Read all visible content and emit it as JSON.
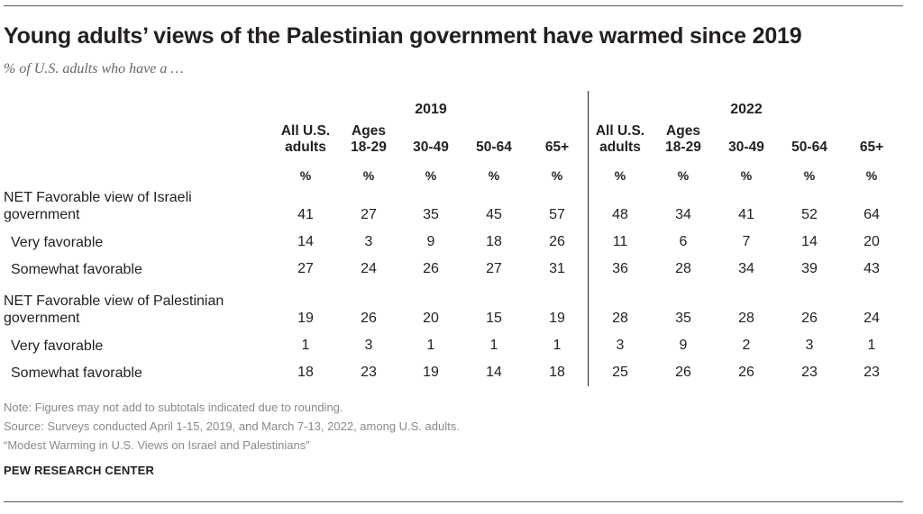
{
  "title": "Young adults’ views of the Palestinian government have warmed since 2019",
  "subtitle": "% of U.S. adults who have a …",
  "chart_data": {
    "type": "table",
    "groups": [
      "2019",
      "2022"
    ],
    "columns": [
      {
        "line1": "All U.S.",
        "line2": "adults"
      },
      {
        "line1": "Ages",
        "line2": "18-29"
      },
      {
        "line1": "",
        "line2": "30-49"
      },
      {
        "line1": "",
        "line2": "50-64"
      },
      {
        "line1": "",
        "line2": "65+"
      },
      {
        "line1": "All U.S.",
        "line2": "adults"
      },
      {
        "line1": "Ages",
        "line2": "18-29"
      },
      {
        "line1": "",
        "line2": "30-49"
      },
      {
        "line1": "",
        "line2": "50-64"
      },
      {
        "line1": "",
        "line2": "65+"
      }
    ],
    "unit": "%",
    "rows": [
      {
        "label": "NET Favorable view of Israeli government",
        "sub": false,
        "values": [
          "41",
          "27",
          "35",
          "45",
          "57",
          "48",
          "34",
          "41",
          "52",
          "64"
        ]
      },
      {
        "label": "Very favorable",
        "sub": true,
        "values": [
          "14",
          "3",
          "9",
          "18",
          "26",
          "11",
          "6",
          "7",
          "14",
          "20"
        ]
      },
      {
        "label": "Somewhat favorable",
        "sub": true,
        "values": [
          "27",
          "24",
          "26",
          "27",
          "31",
          "36",
          "28",
          "34",
          "39",
          "43"
        ]
      },
      {
        "label": "NET Favorable view of Palestinian government",
        "sub": false,
        "values": [
          "19",
          "26",
          "20",
          "15",
          "19",
          "28",
          "35",
          "28",
          "26",
          "24"
        ]
      },
      {
        "label": "Very favorable",
        "sub": true,
        "values": [
          "1",
          "3",
          "1",
          "1",
          "1",
          "3",
          "9",
          "2",
          "3",
          "1"
        ]
      },
      {
        "label": "Somewhat favorable",
        "sub": true,
        "values": [
          "18",
          "23",
          "19",
          "14",
          "18",
          "25",
          "26",
          "26",
          "23",
          "23"
        ]
      }
    ]
  },
  "notes": {
    "note": "Note: Figures may not add to subtotals indicated due to rounding.",
    "source": "Source: Surveys conducted April 1-15, 2019, and March 7-13, 2022, among U.S. adults.",
    "report": "“Modest Warming in U.S. Views on Israel and Palestinians”",
    "brand": "PEW RESEARCH CENTER"
  }
}
